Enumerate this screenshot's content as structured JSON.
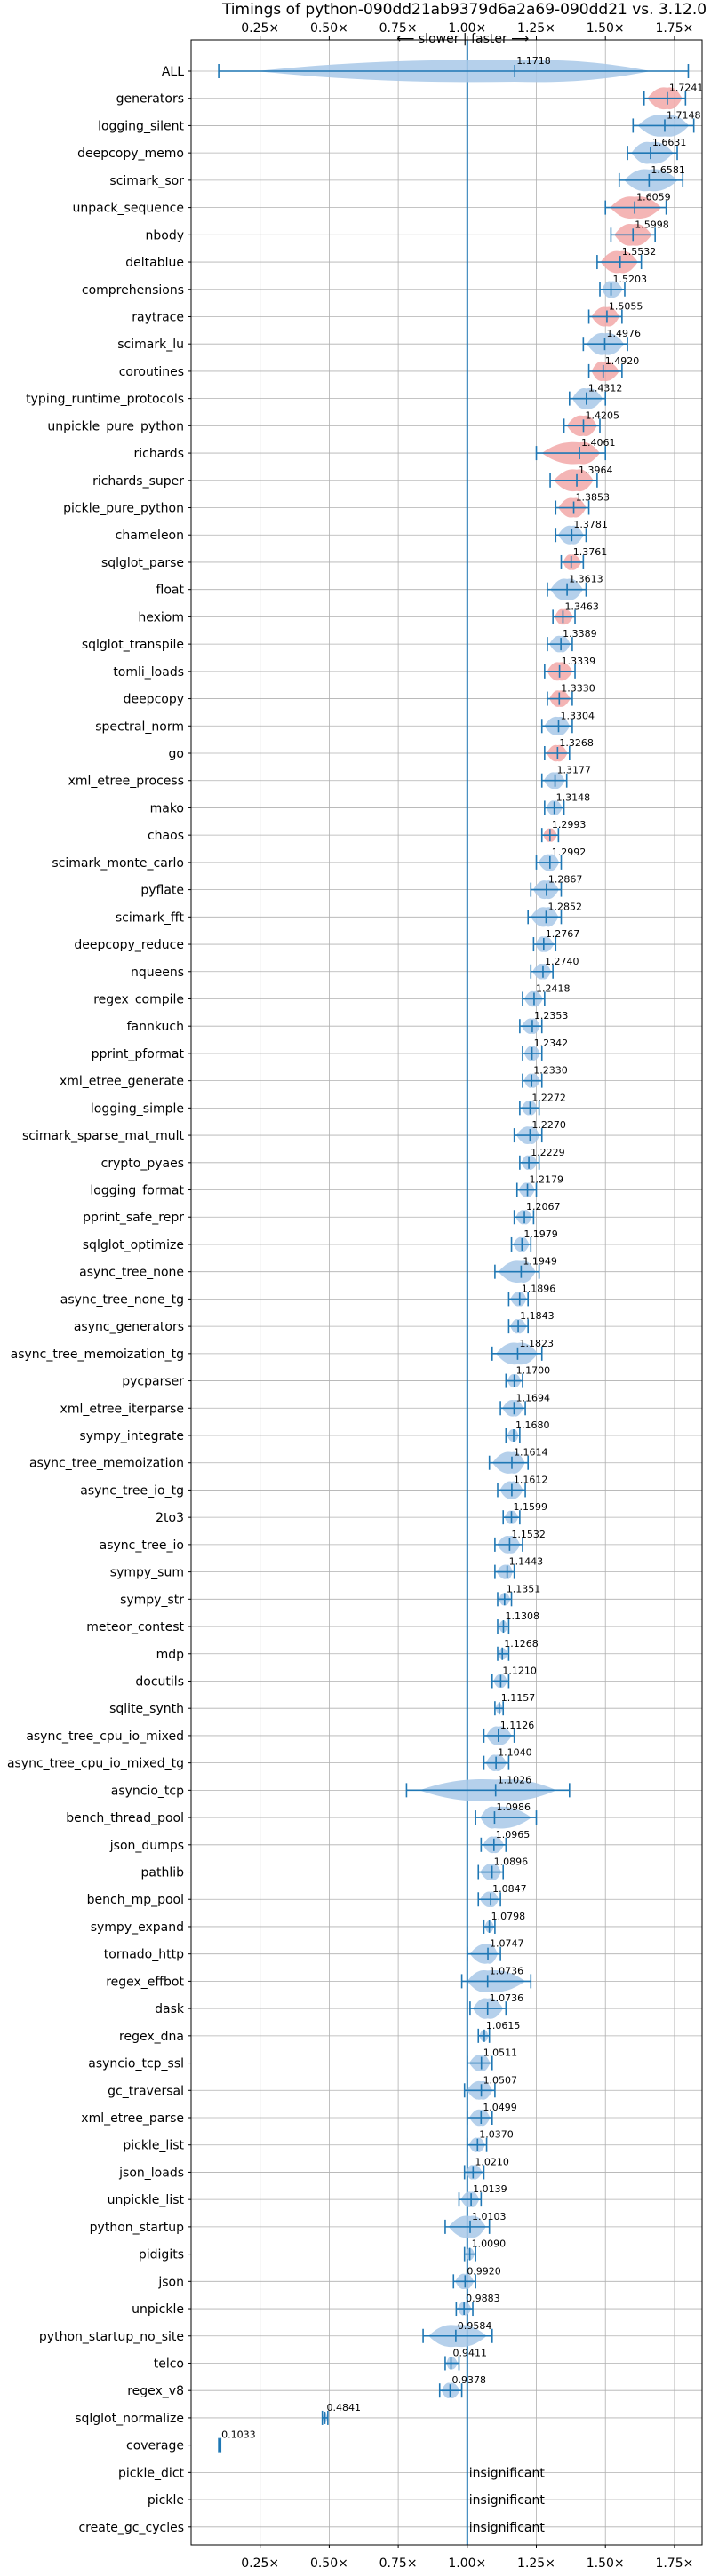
{
  "chart_data": {
    "type": "violin",
    "title": "Timings of python-090dd21ab9379d6a2a69-090dd21 vs. 3.12.0",
    "subtitle": "⟵ slower | faster ⟶",
    "xlim": [
      0.0,
      1.85
    ],
    "xticks": [
      0.25,
      0.5,
      0.75,
      1.0,
      1.25,
      1.5,
      1.75
    ],
    "xtick_labels": [
      "0.25×",
      "0.50×",
      "0.75×",
      "1.00×",
      "1.25×",
      "1.50×",
      "1.75×"
    ],
    "reference_line": 1.0,
    "grid": true,
    "colors": {
      "faster": "#a8c8e8",
      "significant": "#f2a8a8",
      "line": "#1f77b4",
      "grid": "#b0b0b0"
    },
    "insignificant_text": "insignificant",
    "rows": [
      {
        "name": "ALL",
        "label": "1.1718",
        "value": 1.1718,
        "min": 0.1,
        "max": 1.8
      },
      {
        "name": "generators",
        "label": "1.7241",
        "value": 1.7241,
        "min": 1.64,
        "max": 1.79,
        "highlight": true
      },
      {
        "name": "logging_silent",
        "label": "1.7148",
        "value": 1.7148,
        "min": 1.6,
        "max": 1.82
      },
      {
        "name": "deepcopy_memo",
        "label": "1.6631",
        "value": 1.6631,
        "min": 1.58,
        "max": 1.76
      },
      {
        "name": "scimark_sor",
        "label": "1.6581",
        "value": 1.6581,
        "min": 1.55,
        "max": 1.78
      },
      {
        "name": "unpack_sequence",
        "label": "1.6059",
        "value": 1.6059,
        "min": 1.5,
        "max": 1.72,
        "highlight": true
      },
      {
        "name": "nbody",
        "label": "1.5998",
        "value": 1.5998,
        "min": 1.52,
        "max": 1.68,
        "highlight": true
      },
      {
        "name": "deltablue",
        "label": "1.5532",
        "value": 1.5532,
        "min": 1.47,
        "max": 1.63,
        "highlight": true
      },
      {
        "name": "comprehensions",
        "label": "1.5203",
        "value": 1.5203,
        "min": 1.48,
        "max": 1.57
      },
      {
        "name": "raytrace",
        "label": "1.5055",
        "value": 1.5055,
        "min": 1.44,
        "max": 1.56,
        "highlight": true
      },
      {
        "name": "scimark_lu",
        "label": "1.4976",
        "value": 1.4976,
        "min": 1.42,
        "max": 1.58
      },
      {
        "name": "coroutines",
        "label": "1.4920",
        "value": 1.492,
        "min": 1.44,
        "max": 1.56,
        "highlight": true
      },
      {
        "name": "typing_runtime_protocols",
        "label": "1.4312",
        "value": 1.4312,
        "min": 1.37,
        "max": 1.5
      },
      {
        "name": "unpickle_pure_python",
        "label": "1.4205",
        "value": 1.4205,
        "min": 1.35,
        "max": 1.48,
        "highlight": true
      },
      {
        "name": "richards",
        "label": "1.4061",
        "value": 1.4061,
        "min": 1.25,
        "max": 1.5,
        "highlight": true
      },
      {
        "name": "richards_super",
        "label": "1.3964",
        "value": 1.3964,
        "min": 1.3,
        "max": 1.47,
        "highlight": true
      },
      {
        "name": "pickle_pure_python",
        "label": "1.3853",
        "value": 1.3853,
        "min": 1.32,
        "max": 1.44,
        "highlight": true
      },
      {
        "name": "chameleon",
        "label": "1.3781",
        "value": 1.3781,
        "min": 1.32,
        "max": 1.43
      },
      {
        "name": "sqlglot_parse",
        "label": "1.3761",
        "value": 1.3761,
        "min": 1.34,
        "max": 1.42,
        "highlight": true
      },
      {
        "name": "float",
        "label": "1.3613",
        "value": 1.3613,
        "min": 1.29,
        "max": 1.43
      },
      {
        "name": "hexiom",
        "label": "1.3463",
        "value": 1.3463,
        "min": 1.31,
        "max": 1.39,
        "highlight": true
      },
      {
        "name": "sqlglot_transpile",
        "label": "1.3389",
        "value": 1.3389,
        "min": 1.29,
        "max": 1.38
      },
      {
        "name": "tomli_loads",
        "label": "1.3339",
        "value": 1.3339,
        "min": 1.28,
        "max": 1.39,
        "highlight": true
      },
      {
        "name": "deepcopy",
        "label": "1.3330",
        "value": 1.333,
        "min": 1.29,
        "max": 1.38,
        "highlight": true
      },
      {
        "name": "spectral_norm",
        "label": "1.3304",
        "value": 1.3304,
        "min": 1.27,
        "max": 1.38
      },
      {
        "name": "go",
        "label": "1.3268",
        "value": 1.3268,
        "min": 1.28,
        "max": 1.37,
        "highlight": true
      },
      {
        "name": "xml_etree_process",
        "label": "1.3177",
        "value": 1.3177,
        "min": 1.27,
        "max": 1.36
      },
      {
        "name": "mako",
        "label": "1.3148",
        "value": 1.3148,
        "min": 1.28,
        "max": 1.35
      },
      {
        "name": "chaos",
        "label": "1.2993",
        "value": 1.2993,
        "min": 1.27,
        "max": 1.33,
        "highlight": true
      },
      {
        "name": "scimark_monte_carlo",
        "label": "1.2992",
        "value": 1.2992,
        "min": 1.25,
        "max": 1.34
      },
      {
        "name": "pyflate",
        "label": "1.2867",
        "value": 1.2867,
        "min": 1.23,
        "max": 1.34
      },
      {
        "name": "scimark_fft",
        "label": "1.2852",
        "value": 1.2852,
        "min": 1.22,
        "max": 1.34
      },
      {
        "name": "deepcopy_reduce",
        "label": "1.2767",
        "value": 1.2767,
        "min": 1.24,
        "max": 1.32
      },
      {
        "name": "nqueens",
        "label": "1.2740",
        "value": 1.274,
        "min": 1.23,
        "max": 1.31
      },
      {
        "name": "regex_compile",
        "label": "1.2418",
        "value": 1.2418,
        "min": 1.2,
        "max": 1.28
      },
      {
        "name": "fannkuch",
        "label": "1.2353",
        "value": 1.2353,
        "min": 1.19,
        "max": 1.27
      },
      {
        "name": "pprint_pformat",
        "label": "1.2342",
        "value": 1.2342,
        "min": 1.2,
        "max": 1.27
      },
      {
        "name": "xml_etree_generate",
        "label": "1.2330",
        "value": 1.233,
        "min": 1.2,
        "max": 1.27
      },
      {
        "name": "logging_simple",
        "label": "1.2272",
        "value": 1.2272,
        "min": 1.19,
        "max": 1.26
      },
      {
        "name": "scimark_sparse_mat_mult",
        "label": "1.2270",
        "value": 1.227,
        "min": 1.17,
        "max": 1.27
      },
      {
        "name": "crypto_pyaes",
        "label": "1.2229",
        "value": 1.2229,
        "min": 1.19,
        "max": 1.26
      },
      {
        "name": "logging_format",
        "label": "1.2179",
        "value": 1.2179,
        "min": 1.18,
        "max": 1.25
      },
      {
        "name": "pprint_safe_repr",
        "label": "1.2067",
        "value": 1.2067,
        "min": 1.17,
        "max": 1.24
      },
      {
        "name": "sqlglot_optimize",
        "label": "1.1979",
        "value": 1.1979,
        "min": 1.16,
        "max": 1.23
      },
      {
        "name": "async_tree_none",
        "label": "1.1949",
        "value": 1.1949,
        "min": 1.1,
        "max": 1.26
      },
      {
        "name": "async_tree_none_tg",
        "label": "1.1896",
        "value": 1.1896,
        "min": 1.15,
        "max": 1.22
      },
      {
        "name": "async_generators",
        "label": "1.1843",
        "value": 1.1843,
        "min": 1.15,
        "max": 1.22
      },
      {
        "name": "async_tree_memoization_tg",
        "label": "1.1823",
        "value": 1.1823,
        "min": 1.09,
        "max": 1.27
      },
      {
        "name": "pycparser",
        "label": "1.1700",
        "value": 1.17,
        "min": 1.14,
        "max": 1.2
      },
      {
        "name": "xml_etree_iterparse",
        "label": "1.1694",
        "value": 1.1694,
        "min": 1.12,
        "max": 1.21
      },
      {
        "name": "sympy_integrate",
        "label": "1.1680",
        "value": 1.168,
        "min": 1.14,
        "max": 1.19
      },
      {
        "name": "async_tree_memoization",
        "label": "1.1614",
        "value": 1.1614,
        "min": 1.08,
        "max": 1.22
      },
      {
        "name": "async_tree_io_tg",
        "label": "1.1612",
        "value": 1.1612,
        "min": 1.11,
        "max": 1.21
      },
      {
        "name": "2to3",
        "label": "1.1599",
        "value": 1.1599,
        "min": 1.13,
        "max": 1.19
      },
      {
        "name": "async_tree_io",
        "label": "1.1532",
        "value": 1.1532,
        "min": 1.1,
        "max": 1.2
      },
      {
        "name": "sympy_sum",
        "label": "1.1443",
        "value": 1.1443,
        "min": 1.1,
        "max": 1.17
      },
      {
        "name": "sympy_str",
        "label": "1.1351",
        "value": 1.1351,
        "min": 1.11,
        "max": 1.16
      },
      {
        "name": "meteor_contest",
        "label": "1.1308",
        "value": 1.1308,
        "min": 1.11,
        "max": 1.15
      },
      {
        "name": "mdp",
        "label": "1.1268",
        "value": 1.1268,
        "min": 1.11,
        "max": 1.15
      },
      {
        "name": "docutils",
        "label": "1.1210",
        "value": 1.121,
        "min": 1.09,
        "max": 1.15
      },
      {
        "name": "sqlite_synth",
        "label": "1.1157",
        "value": 1.1157,
        "min": 1.1,
        "max": 1.13
      },
      {
        "name": "async_tree_cpu_io_mixed",
        "label": "1.1126",
        "value": 1.1126,
        "min": 1.06,
        "max": 1.17
      },
      {
        "name": "async_tree_cpu_io_mixed_tg",
        "label": "1.1040",
        "value": 1.104,
        "min": 1.06,
        "max": 1.15
      },
      {
        "name": "asyncio_tcp",
        "label": "1.1026",
        "value": 1.1026,
        "min": 0.78,
        "max": 1.37
      },
      {
        "name": "bench_thread_pool",
        "label": "1.0986",
        "value": 1.0986,
        "min": 1.03,
        "max": 1.25
      },
      {
        "name": "json_dumps",
        "label": "1.0965",
        "value": 1.0965,
        "min": 1.05,
        "max": 1.14
      },
      {
        "name": "pathlib",
        "label": "1.0896",
        "value": 1.0896,
        "min": 1.04,
        "max": 1.13
      },
      {
        "name": "bench_mp_pool",
        "label": "1.0847",
        "value": 1.0847,
        "min": 1.04,
        "max": 1.12
      },
      {
        "name": "sympy_expand",
        "label": "1.0798",
        "value": 1.0798,
        "min": 1.06,
        "max": 1.1
      },
      {
        "name": "tornado_http",
        "label": "1.0747",
        "value": 1.0747,
        "min": 1.0,
        "max": 1.12
      },
      {
        "name": "regex_effbot",
        "label": "1.0736",
        "value": 1.0736,
        "min": 0.98,
        "max": 1.23
      },
      {
        "name": "dask",
        "label": "1.0736",
        "value": 1.0736,
        "min": 1.01,
        "max": 1.14
      },
      {
        "name": "regex_dna",
        "label": "1.0615",
        "value": 1.0615,
        "min": 1.04,
        "max": 1.08
      },
      {
        "name": "asyncio_tcp_ssl",
        "label": "1.0511",
        "value": 1.0511,
        "min": 1.0,
        "max": 1.09
      },
      {
        "name": "gc_traversal",
        "label": "1.0507",
        "value": 1.0507,
        "min": 0.99,
        "max": 1.1
      },
      {
        "name": "xml_etree_parse",
        "label": "1.0499",
        "value": 1.0499,
        "min": 1.0,
        "max": 1.09
      },
      {
        "name": "pickle_list",
        "label": "1.0370",
        "value": 1.037,
        "min": 1.0,
        "max": 1.07
      },
      {
        "name": "json_loads",
        "label": "1.0210",
        "value": 1.021,
        "min": 0.99,
        "max": 1.06
      },
      {
        "name": "unpickle_list",
        "label": "1.0139",
        "value": 1.0139,
        "min": 0.97,
        "max": 1.05
      },
      {
        "name": "python_startup",
        "label": "1.0103",
        "value": 1.0103,
        "min": 0.92,
        "max": 1.08
      },
      {
        "name": "pidigits",
        "label": "1.0090",
        "value": 1.009,
        "min": 0.99,
        "max": 1.03
      },
      {
        "name": "json",
        "label": "0.9920",
        "value": 0.992,
        "min": 0.95,
        "max": 1.03
      },
      {
        "name": "unpickle",
        "label": "0.9883",
        "value": 0.9883,
        "min": 0.96,
        "max": 1.02
      },
      {
        "name": "python_startup_no_site",
        "label": "0.9584",
        "value": 0.9584,
        "min": 0.84,
        "max": 1.09
      },
      {
        "name": "telco",
        "label": "0.9411",
        "value": 0.9411,
        "min": 0.92,
        "max": 0.97
      },
      {
        "name": "regex_v8",
        "label": "0.9378",
        "value": 0.9378,
        "min": 0.9,
        "max": 0.98
      },
      {
        "name": "sqlglot_normalize",
        "label": "0.4841",
        "value": 0.4841,
        "min": 0.475,
        "max": 0.495
      },
      {
        "name": "coverage",
        "label": "0.1033",
        "value": 0.1033,
        "min": 0.1,
        "max": 0.107
      },
      {
        "name": "pickle_dict",
        "label": "insignificant",
        "insignificant": true
      },
      {
        "name": "pickle",
        "label": "insignificant",
        "insignificant": true
      },
      {
        "name": "create_gc_cycles",
        "label": "insignificant",
        "insignificant": true
      }
    ]
  }
}
